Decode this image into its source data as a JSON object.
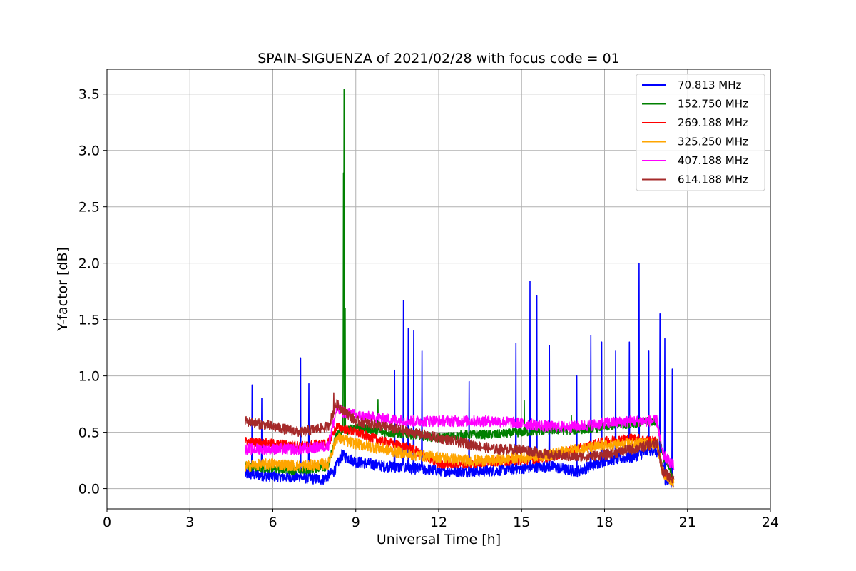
{
  "chart_data": {
    "type": "line",
    "title": "SPAIN-SIGUENZA of 2021/02/28 with focus code = 01",
    "xlabel": "Universal Time [h]",
    "ylabel": "Y-factor [dB]",
    "xlim": [
      0,
      24
    ],
    "ylim": [
      -0.18,
      3.72
    ],
    "xticks": [
      0,
      3,
      6,
      9,
      12,
      15,
      18,
      21,
      24
    ],
    "xtick_labels": [
      "0",
      "3",
      "6",
      "9",
      "12",
      "15",
      "18",
      "21",
      "24"
    ],
    "yticks": [
      0.0,
      0.5,
      1.0,
      1.5,
      2.0,
      2.5,
      3.0,
      3.5
    ],
    "ytick_labels": [
      "0.0",
      "0.5",
      "1.0",
      "1.5",
      "2.0",
      "2.5",
      "3.0",
      "3.5"
    ],
    "grid": true,
    "legend_position": "top-right",
    "x_range": [
      5.0,
      20.5
    ],
    "series": [
      {
        "name": " 70.813 MHz",
        "color": "#0000ff",
        "noise": 0.05,
        "x": [
          5.0,
          6.0,
          7.0,
          7.8,
          8.2,
          8.5,
          9.0,
          10.0,
          11.0,
          12.0,
          13.0,
          14.0,
          15.0,
          16.0,
          17.0,
          18.0,
          19.0,
          19.8,
          20.0,
          20.2,
          20.5
        ],
        "y": [
          0.13,
          0.11,
          0.1,
          0.08,
          0.15,
          0.3,
          0.24,
          0.2,
          0.18,
          0.16,
          0.15,
          0.16,
          0.18,
          0.2,
          0.15,
          0.25,
          0.28,
          0.35,
          0.3,
          0.08,
          0.05
        ],
        "spikes": [
          [
            5.25,
            0.92
          ],
          [
            5.6,
            0.8
          ],
          [
            7.0,
            1.16
          ],
          [
            7.3,
            0.93
          ],
          [
            10.4,
            1.05
          ],
          [
            10.72,
            1.67
          ],
          [
            10.9,
            1.42
          ],
          [
            11.1,
            1.4
          ],
          [
            11.4,
            1.22
          ],
          [
            13.1,
            0.95
          ],
          [
            14.8,
            1.29
          ],
          [
            15.3,
            1.84
          ],
          [
            15.55,
            1.71
          ],
          [
            16.0,
            1.27
          ],
          [
            17.0,
            1.0
          ],
          [
            17.5,
            1.36
          ],
          [
            17.9,
            1.3
          ],
          [
            18.4,
            1.22
          ],
          [
            18.9,
            1.3
          ],
          [
            19.25,
            2.0
          ],
          [
            19.6,
            1.22
          ],
          [
            20.0,
            1.55
          ],
          [
            20.18,
            1.33
          ],
          [
            20.45,
            1.06
          ]
        ]
      },
      {
        "name": "152.750 MHz",
        "color": "#008000",
        "noise": 0.04,
        "x": [
          5.0,
          6.0,
          7.0,
          8.0,
          8.3,
          9.0,
          10.0,
          11.0,
          12.0,
          13.0,
          14.0,
          15.0,
          16.0,
          17.0,
          18.0,
          19.0,
          19.9,
          20.1,
          20.5
        ],
        "y": [
          0.2,
          0.18,
          0.16,
          0.2,
          0.48,
          0.55,
          0.5,
          0.48,
          0.45,
          0.48,
          0.48,
          0.5,
          0.52,
          0.52,
          0.55,
          0.58,
          0.6,
          0.3,
          0.1
        ],
        "spikes": [
          [
            8.58,
            3.54
          ],
          [
            8.55,
            2.8
          ],
          [
            8.62,
            1.6
          ],
          [
            9.8,
            0.79
          ],
          [
            15.1,
            0.78
          ],
          [
            16.8,
            0.65
          ]
        ]
      },
      {
        "name": "269.188 MHz",
        "color": "#ff0000",
        "noise": 0.04,
        "x": [
          5.0,
          6.0,
          7.0,
          8.0,
          8.3,
          9.0,
          10.0,
          11.0,
          12.0,
          13.0,
          14.0,
          15.0,
          16.0,
          17.0,
          18.0,
          19.0,
          19.9,
          20.1,
          20.5
        ],
        "y": [
          0.42,
          0.4,
          0.38,
          0.4,
          0.55,
          0.5,
          0.42,
          0.36,
          0.22,
          0.22,
          0.24,
          0.25,
          0.28,
          0.35,
          0.42,
          0.45,
          0.42,
          0.15,
          0.05
        ],
        "spikes": []
      },
      {
        "name": "325.250 MHz",
        "color": "#ffa500",
        "noise": 0.05,
        "x": [
          5.0,
          6.0,
          7.0,
          8.0,
          8.3,
          9.0,
          10.0,
          11.0,
          12.0,
          13.0,
          14.0,
          15.0,
          16.0,
          17.0,
          18.0,
          19.0,
          19.9,
          20.1,
          20.5
        ],
        "y": [
          0.2,
          0.22,
          0.2,
          0.22,
          0.45,
          0.4,
          0.35,
          0.3,
          0.28,
          0.25,
          0.25,
          0.28,
          0.3,
          0.35,
          0.38,
          0.4,
          0.4,
          0.15,
          0.05
        ],
        "spikes": []
      },
      {
        "name": "407.188 MHz",
        "color": "#ff00ff",
        "noise": 0.05,
        "x": [
          5.0,
          6.0,
          7.0,
          8.0,
          8.3,
          9.0,
          10.0,
          11.0,
          12.0,
          13.0,
          14.0,
          15.0,
          16.0,
          17.0,
          18.0,
          19.0,
          19.9,
          20.1,
          20.5
        ],
        "y": [
          0.35,
          0.35,
          0.35,
          0.38,
          0.7,
          0.65,
          0.62,
          0.6,
          0.6,
          0.6,
          0.6,
          0.58,
          0.55,
          0.55,
          0.58,
          0.6,
          0.6,
          0.3,
          0.2
        ],
        "spikes": []
      },
      {
        "name": "614.188 MHz",
        "color": "#a52a2a",
        "noise": 0.045,
        "x": [
          5.0,
          6.0,
          7.0,
          8.0,
          8.3,
          9.0,
          10.0,
          11.0,
          12.0,
          13.0,
          14.0,
          15.0,
          16.0,
          17.0,
          18.0,
          19.0,
          19.9,
          20.1,
          20.5
        ],
        "y": [
          0.6,
          0.55,
          0.5,
          0.55,
          0.75,
          0.6,
          0.55,
          0.5,
          0.45,
          0.4,
          0.35,
          0.35,
          0.3,
          0.28,
          0.3,
          0.35,
          0.4,
          0.15,
          0.08
        ],
        "spikes": [
          [
            8.2,
            0.85
          ]
        ]
      }
    ]
  }
}
